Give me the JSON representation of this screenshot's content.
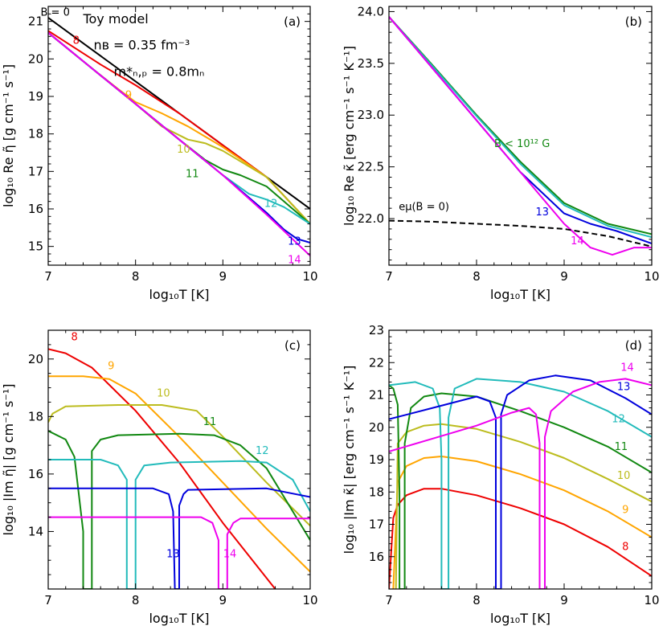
{
  "colors": {
    "B0": "#000000",
    "8": "#ee0000",
    "9": "#ffa500",
    "10": "#bcbc1e",
    "11": "#118811",
    "12": "#22bbbb",
    "13": "#0000dd",
    "14": "#ee00ee",
    "weak": "#118811",
    "emu": "#000000"
  },
  "chart_data": [
    {
      "id": "a",
      "type": "line",
      "panel_label": "(a)",
      "xlabel": "log₁₀T [K]",
      "ylabel": "log₁₀ Re η̃  [g cm⁻¹ s⁻¹]",
      "xlim": [
        7,
        10
      ],
      "ylim": [
        14.5,
        21.4
      ],
      "xticks": [
        "7",
        "8",
        "9",
        "10"
      ],
      "yticks": [
        "15",
        "16",
        "17",
        "18",
        "19",
        "20",
        "21"
      ],
      "text_block": [
        "Toy model",
        "nʙ = 0.35 fm⁻³",
        "m*ₙ,ₚ = 0.8mₙ"
      ],
      "series": [
        {
          "name": "B = 0",
          "label": "B = 0",
          "color_key": "B0",
          "x": [
            7,
            7.5,
            8,
            8.5,
            9,
            9.5,
            10
          ],
          "y": [
            21.1,
            20.25,
            19.4,
            18.55,
            17.7,
            16.85,
            16.0
          ]
        },
        {
          "name": "8",
          "label": "8",
          "color_key": "8",
          "x": [
            7,
            7.3,
            7.6,
            8,
            8.5,
            9,
            9.5,
            10
          ],
          "y": [
            20.75,
            20.3,
            19.85,
            19.3,
            18.55,
            17.7,
            16.85,
            15.6
          ]
        },
        {
          "name": "9",
          "label": "9",
          "color_key": "9",
          "x": [
            7,
            7.5,
            7.8,
            8,
            8.3,
            8.6,
            9,
            9.5,
            10
          ],
          "y": [
            20.7,
            19.75,
            19.2,
            18.85,
            18.55,
            18.2,
            17.65,
            16.85,
            15.6
          ]
        },
        {
          "name": "10",
          "label": "10",
          "color_key": "10",
          "x": [
            7,
            7.5,
            8,
            8.3,
            8.6,
            8.8,
            9,
            9.5,
            10
          ],
          "y": [
            20.7,
            19.75,
            18.8,
            18.2,
            17.85,
            17.75,
            17.55,
            16.85,
            15.6
          ]
        },
        {
          "name": "11",
          "label": "11",
          "color_key": "11",
          "x": [
            7,
            7.5,
            8,
            8.5,
            8.8,
            9,
            9.2,
            9.5,
            10
          ],
          "y": [
            20.7,
            19.75,
            18.8,
            17.85,
            17.3,
            17.05,
            16.9,
            16.6,
            15.6
          ]
        },
        {
          "name": "12",
          "label": "12",
          "color_key": "12",
          "x": [
            7,
            7.5,
            8,
            8.5,
            9,
            9.3,
            9.5,
            9.7,
            10
          ],
          "y": [
            20.7,
            19.75,
            18.8,
            17.85,
            16.9,
            16.4,
            16.25,
            16.05,
            15.6
          ]
        },
        {
          "name": "13",
          "label": "13",
          "color_key": "13",
          "x": [
            7,
            7.5,
            8,
            8.5,
            9,
            9.5,
            9.7,
            9.85,
            10
          ],
          "y": [
            20.7,
            19.75,
            18.8,
            17.85,
            16.9,
            15.9,
            15.45,
            15.2,
            15.1
          ]
        },
        {
          "name": "14",
          "label": "14",
          "color_key": "14",
          "x": [
            7,
            7.5,
            8,
            8.5,
            9,
            9.5,
            10
          ],
          "y": [
            20.7,
            19.75,
            18.8,
            17.85,
            16.9,
            15.85,
            14.75
          ]
        }
      ]
    },
    {
      "id": "b",
      "type": "line",
      "panel_label": "(b)",
      "xlabel": "log₁₀T [K]",
      "ylabel": "log₁₀ Re κ̃  [erg cm⁻¹ s⁻¹ K⁻¹]",
      "xlim": [
        7,
        10
      ],
      "ylim": [
        21.55,
        24.05
      ],
      "xticks": [
        "7",
        "8",
        "9",
        "10"
      ],
      "yticks": [
        "22.0",
        "22.5",
        "23.0",
        "23.5",
        "24.0"
      ],
      "series": [
        {
          "name": "B < 10¹² G (green)",
          "label": "B < 10¹² G",
          "color_key": "weak",
          "x": [
            7,
            7.5,
            8,
            8.5,
            9,
            9.5,
            10
          ],
          "y": [
            23.95,
            23.48,
            23.0,
            22.55,
            22.15,
            21.95,
            21.85
          ]
        },
        {
          "name": "12 (cyan)",
          "label": "",
          "color_key": "12",
          "x": [
            7,
            7.5,
            8,
            8.5,
            9,
            9.5,
            10
          ],
          "y": [
            23.95,
            23.47,
            22.99,
            22.53,
            22.13,
            21.93,
            21.82
          ]
        },
        {
          "name": "13",
          "label": "13",
          "color_key": "13",
          "x": [
            7,
            7.5,
            8,
            8.5,
            9,
            9.3,
            9.6,
            10
          ],
          "y": [
            23.95,
            23.45,
            22.95,
            22.45,
            22.05,
            21.95,
            21.88,
            21.76
          ]
        },
        {
          "name": "14",
          "label": "14",
          "color_key": "14",
          "x": [
            7,
            7.5,
            8,
            8.5,
            9,
            9.3,
            9.55,
            9.8,
            10
          ],
          "y": [
            23.95,
            23.45,
            22.95,
            22.45,
            21.95,
            21.72,
            21.65,
            21.72,
            21.72
          ]
        },
        {
          "name": "eμ(B=0)",
          "label": "eμ(B = 0)",
          "color_key": "emu",
          "dashed": true,
          "x": [
            7,
            7.5,
            8,
            8.5,
            9,
            9.5,
            10
          ],
          "y": [
            21.98,
            21.97,
            21.95,
            21.93,
            21.9,
            21.83,
            21.73
          ]
        }
      ]
    },
    {
      "id": "c",
      "type": "line",
      "panel_label": "(c)",
      "xlabel": "log₁₀T [K]",
      "ylabel": "log₁₀ |Im η̃|  [g cm⁻¹ s⁻¹]",
      "xlim": [
        7,
        10
      ],
      "ylim": [
        12.0,
        21.0
      ],
      "xticks": [
        "7",
        "8",
        "9",
        "10"
      ],
      "yticks": [
        "14",
        "16",
        "18",
        "20"
      ],
      "series": [
        {
          "name": "8",
          "label": "8",
          "color_key": "8",
          "x": [
            7,
            7.2,
            7.5,
            8,
            8.5,
            9,
            9.6
          ],
          "y": [
            20.35,
            20.2,
            19.7,
            18.2,
            16.4,
            14.3,
            12.0
          ]
        },
        {
          "name": "9",
          "label": "9",
          "color_key": "9",
          "x": [
            7,
            7.4,
            7.7,
            8,
            8.5,
            9,
            9.5,
            10
          ],
          "y": [
            19.4,
            19.4,
            19.3,
            18.8,
            17.3,
            15.7,
            14.1,
            12.6
          ]
        },
        {
          "name": "10",
          "label": "10",
          "color_key": "10",
          "x": [
            7,
            7.05,
            7.2,
            7.8,
            8.3,
            8.7,
            9.0,
            9.5,
            10
          ],
          "y": [
            17.8,
            18.1,
            18.35,
            18.4,
            18.4,
            18.2,
            17.3,
            15.7,
            14.2
          ]
        },
        {
          "name": "11",
          "label": "11",
          "color_key": "11",
          "x": [
            7,
            7.2,
            7.3,
            7.4,
            7.4,
            7.5,
            7.5,
            7.6,
            7.8,
            8.5,
            8.9,
            9.2,
            9.5,
            10
          ],
          "y": [
            17.5,
            17.2,
            16.6,
            14.0,
            12.0,
            12.0,
            16.8,
            17.2,
            17.35,
            17.4,
            17.35,
            17.0,
            16.2,
            13.7
          ]
        },
        {
          "name": "12",
          "label": "12",
          "color_key": "12",
          "x": [
            7,
            7.6,
            7.8,
            7.9,
            7.9,
            8.0,
            8.0,
            8.1,
            8.4,
            9.2,
            9.5,
            9.8,
            10
          ],
          "y": [
            16.5,
            16.5,
            16.3,
            15.8,
            12.0,
            12.0,
            15.8,
            16.3,
            16.4,
            16.45,
            16.4,
            15.8,
            14.7
          ]
        },
        {
          "name": "13",
          "label": "13",
          "color_key": "13",
          "x": [
            7,
            8.2,
            8.38,
            8.43,
            8.45,
            8.5,
            8.5,
            8.55,
            8.6,
            9.5,
            10
          ],
          "y": [
            15.5,
            15.5,
            15.3,
            14.7,
            12.0,
            12.0,
            14.9,
            15.3,
            15.45,
            15.5,
            15.2
          ]
        },
        {
          "name": "14",
          "label": "14",
          "color_key": "14",
          "x": [
            7,
            8.75,
            8.88,
            8.95,
            8.95,
            9.05,
            9.05,
            9.12,
            9.2,
            10
          ],
          "y": [
            14.5,
            14.5,
            14.3,
            13.7,
            12.0,
            12.0,
            13.9,
            14.3,
            14.45,
            14.45
          ]
        }
      ]
    },
    {
      "id": "d",
      "type": "line",
      "panel_label": "(d)",
      "xlabel": "log₁₀T [K]",
      "ylabel": "log₁₀ |Im κ̃|  [erg cm⁻¹ s⁻¹ K⁻¹]",
      "xlim": [
        7,
        10
      ],
      "ylim": [
        15.0,
        23.0
      ],
      "xticks": [
        "7",
        "8",
        "9",
        "10"
      ],
      "yticks": [
        "16",
        "17",
        "18",
        "19",
        "20",
        "21",
        "22",
        "23"
      ],
      "series": [
        {
          "name": "8",
          "label": "8",
          "color_key": "8",
          "x": [
            7,
            7.05,
            7.1,
            7.2,
            7.4,
            7.6,
            8,
            8.5,
            9,
            9.5,
            10
          ],
          "y": [
            15.0,
            17.2,
            17.6,
            17.9,
            18.1,
            18.1,
            17.9,
            17.5,
            17.0,
            16.3,
            15.4
          ]
        },
        {
          "name": "9",
          "label": "9",
          "color_key": "9",
          "x": [
            7.05,
            7.1,
            7.2,
            7.4,
            7.6,
            8,
            8.5,
            9,
            9.5,
            10
          ],
          "y": [
            15.0,
            18.3,
            18.8,
            19.05,
            19.1,
            18.95,
            18.55,
            18.05,
            17.4,
            16.6
          ]
        },
        {
          "name": "10",
          "label": "10",
          "color_key": "10",
          "x": [
            7.08,
            7.1,
            7.2,
            7.4,
            7.6,
            8,
            8.5,
            9,
            9.5,
            10
          ],
          "y": [
            15.0,
            19.5,
            19.85,
            20.05,
            20.1,
            19.95,
            19.55,
            19.05,
            18.4,
            17.7
          ]
        },
        {
          "name": "11",
          "label": "11",
          "color_key": "11",
          "x": [
            7,
            7.05,
            7.1,
            7.12,
            7.12,
            7.18,
            7.18,
            7.25,
            7.4,
            7.6,
            8,
            8.5,
            9,
            9.5,
            10
          ],
          "y": [
            21.3,
            21.2,
            20.7,
            18.0,
            15.0,
            15.0,
            19.5,
            20.6,
            20.95,
            21.05,
            20.95,
            20.5,
            20.0,
            19.4,
            18.6
          ]
        },
        {
          "name": "12",
          "label": "12",
          "color_key": "12",
          "x": [
            7,
            7.3,
            7.5,
            7.58,
            7.6,
            7.6,
            7.68,
            7.68,
            7.75,
            8,
            8.5,
            9,
            9.5,
            10
          ],
          "y": [
            21.3,
            21.4,
            21.2,
            20.6,
            19.0,
            15.0,
            15.0,
            20.3,
            21.2,
            21.5,
            21.4,
            21.1,
            20.5,
            19.7
          ]
        },
        {
          "name": "13",
          "label": "13",
          "color_key": "13",
          "x": [
            7,
            7.5,
            8,
            8.15,
            8.22,
            8.22,
            8.28,
            8.28,
            8.35,
            8.6,
            8.9,
            9.3,
            9.7,
            10
          ],
          "y": [
            20.25,
            20.6,
            20.95,
            20.8,
            20.3,
            15.0,
            15.0,
            20.4,
            21.0,
            21.45,
            21.6,
            21.45,
            20.9,
            20.4
          ]
        },
        {
          "name": "14",
          "label": "14",
          "color_key": "14",
          "x": [
            7,
            7.5,
            8,
            8.4,
            8.6,
            8.68,
            8.72,
            8.72,
            8.78,
            8.78,
            8.85,
            9.1,
            9.4,
            9.7,
            10
          ],
          "y": [
            19.25,
            19.65,
            20.05,
            20.45,
            20.6,
            20.4,
            19.5,
            15.0,
            15.0,
            19.7,
            20.5,
            21.1,
            21.4,
            21.5,
            21.3
          ]
        }
      ]
    }
  ]
}
